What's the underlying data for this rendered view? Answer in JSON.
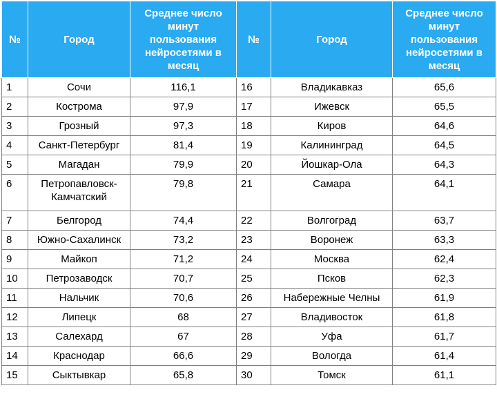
{
  "header": {
    "num": "№",
    "city": "Город",
    "value": "Среднее число минут пользования нейросетями в месяц"
  },
  "left": [
    {
      "num": "1",
      "city": "Сочи",
      "value": "116,1"
    },
    {
      "num": "2",
      "city": "Кострома",
      "value": "97,9"
    },
    {
      "num": "3",
      "city": "Грозный",
      "value": "97,3"
    },
    {
      "num": "4",
      "city": "Санкт-Петербург",
      "value": "81,4"
    },
    {
      "num": "5",
      "city": "Магадан",
      "value": "79,9"
    },
    {
      "num": "6",
      "city": "Петропавловск-Камчатский",
      "value": "79,8"
    },
    {
      "num": "7",
      "city": "Белгород",
      "value": "74,4"
    },
    {
      "num": "8",
      "city": "Южно-Сахалинск",
      "value": "73,2"
    },
    {
      "num": "9",
      "city": "Майкоп",
      "value": "71,2"
    },
    {
      "num": "10",
      "city": "Петрозаводск",
      "value": "70,7"
    },
    {
      "num": "11",
      "city": "Нальчик",
      "value": "70,6"
    },
    {
      "num": "12",
      "city": "Липецк",
      "value": "68"
    },
    {
      "num": "13",
      "city": "Салехард",
      "value": "67"
    },
    {
      "num": "14",
      "city": "Краснодар",
      "value": "66,6"
    },
    {
      "num": "15",
      "city": "Сыктывкар",
      "value": "65,8"
    }
  ],
  "right": [
    {
      "num": "16",
      "city": "Владикавказ",
      "value": "65,6"
    },
    {
      "num": "17",
      "city": "Ижевск",
      "value": "65,5"
    },
    {
      "num": "18",
      "city": "Киров",
      "value": "64,6"
    },
    {
      "num": "19",
      "city": "Калининград",
      "value": "64,5"
    },
    {
      "num": "20",
      "city": "Йошкар-Ола",
      "value": "64,3"
    },
    {
      "num": "21",
      "city": "Самара",
      "value": "64,1"
    },
    {
      "num": "22",
      "city": "Волгоград",
      "value": "63,7"
    },
    {
      "num": "23",
      "city": "Воронеж",
      "value": "63,3"
    },
    {
      "num": "24",
      "city": "Москва",
      "value": "62,4"
    },
    {
      "num": "25",
      "city": "Псков",
      "value": "62,3"
    },
    {
      "num": "26",
      "city": "Набережные Челны",
      "value": "61,9"
    },
    {
      "num": "27",
      "city": "Владивосток",
      "value": "61,8"
    },
    {
      "num": "28",
      "city": "Уфа",
      "value": "61,7"
    },
    {
      "num": "29",
      "city": "Вологда",
      "value": "61,4"
    },
    {
      "num": "30",
      "city": "Томск",
      "value": "61,1"
    }
  ]
}
